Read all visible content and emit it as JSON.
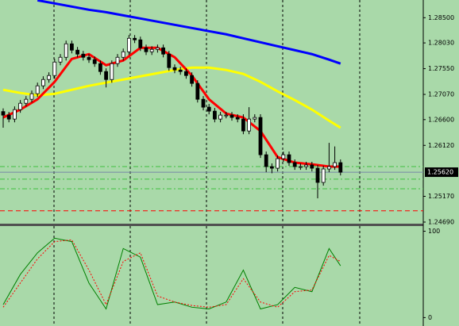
{
  "chart_data": [
    {
      "type": "candlestick",
      "open": [
        1.2675,
        1.26684,
        1.2661,
        1.26787,
        1.26905,
        1.26979,
        1.27083,
        1.2723,
        1.27348,
        1.27422,
        1.27673,
        1.27762,
        1.28013,
        1.27895,
        1.27821,
        1.27762,
        1.27718,
        1.27644,
        1.27496,
        1.27348,
        1.27644,
        1.27762,
        1.27865,
        1.28116,
        1.28087,
        1.27939,
        1.27865,
        1.27909,
        1.27939,
        1.27821,
        1.2757,
        1.27526,
        1.27496,
        1.27422,
        1.27275,
        1.26979,
        1.26832,
        1.26758,
        1.2661,
        1.26684,
        1.26684,
        1.2664,
        1.2661,
        1.26388,
        1.2661,
        1.2664,
        1.25945,
        1.25724,
        1.25694,
        1.25872,
        1.25945,
        1.25798,
        1.25724,
        1.25724,
        1.25754,
        1.25694,
        1.25429,
        1.2568,
        1.25724,
        1.25798
      ],
      "high": [
        1.2681,
        1.26744,
        1.26847,
        1.26965,
        1.27039,
        1.27143,
        1.2729,
        1.27408,
        1.27482,
        1.27733,
        1.27822,
        1.28073,
        1.28073,
        1.27955,
        1.27881,
        1.27822,
        1.27778,
        1.27704,
        1.27556,
        1.27704,
        1.27822,
        1.27925,
        1.28176,
        1.28176,
        1.28147,
        1.27999,
        1.27969,
        1.27999,
        1.27999,
        1.27881,
        1.2763,
        1.27586,
        1.27556,
        1.27482,
        1.27335,
        1.27039,
        1.26892,
        1.26818,
        1.26744,
        1.26744,
        1.26744,
        1.267,
        1.267,
        1.26832,
        1.267,
        1.267,
        1.26005,
        1.25784,
        1.25932,
        1.26005,
        1.26005,
        1.25858,
        1.25784,
        1.25814,
        1.25814,
        1.25754,
        1.2574,
        1.26167,
        1.261,
        1.25858
      ],
      "low": [
        1.2645,
        1.2655,
        1.2655,
        1.26727,
        1.26845,
        1.26919,
        1.27023,
        1.2717,
        1.27288,
        1.27362,
        1.27613,
        1.27702,
        1.27835,
        1.27761,
        1.27702,
        1.27658,
        1.27584,
        1.27436,
        1.272,
        1.27288,
        1.27584,
        1.27702,
        1.27805,
        1.28027,
        1.27879,
        1.27805,
        1.27805,
        1.27849,
        1.27761,
        1.2751,
        1.27466,
        1.27436,
        1.27362,
        1.27215,
        1.26919,
        1.26772,
        1.26698,
        1.2655,
        1.2655,
        1.26624,
        1.2658,
        1.2655,
        1.26328,
        1.26328,
        1.2655,
        1.25885,
        1.2562,
        1.256,
        1.25634,
        1.25812,
        1.25738,
        1.25664,
        1.25664,
        1.25664,
        1.25634,
        1.25133,
        1.25369,
        1.2562,
        1.25664,
        1.2556
      ],
      "close": [
        1.26684,
        1.2661,
        1.26787,
        1.26905,
        1.26979,
        1.27083,
        1.2723,
        1.27348,
        1.27422,
        1.27673,
        1.27762,
        1.28013,
        1.27895,
        1.27821,
        1.27762,
        1.27718,
        1.27644,
        1.27496,
        1.27348,
        1.27644,
        1.27762,
        1.27865,
        1.28116,
        1.28087,
        1.27939,
        1.27865,
        1.27909,
        1.27939,
        1.27821,
        1.2757,
        1.27526,
        1.27496,
        1.27422,
        1.27275,
        1.26979,
        1.26832,
        1.26758,
        1.2661,
        1.26684,
        1.26684,
        1.2664,
        1.2661,
        1.26388,
        1.2661,
        1.2664,
        1.25945,
        1.25724,
        1.25694,
        1.25872,
        1.25945,
        1.25798,
        1.25724,
        1.25724,
        1.25754,
        1.25694,
        1.25429,
        1.2568,
        1.25724,
        1.25798,
        1.2562
      ],
      "up_color": "#ffffff",
      "down_color": "#000000",
      "series": [
        {
          "color": "#0000ff",
          "x": [
            6,
            9,
            12,
            15,
            18,
            21,
            24,
            27,
            30,
            33,
            36,
            39,
            42,
            45,
            48,
            51,
            54,
            57,
            59
          ],
          "values": [
            1.28825,
            1.28766,
            1.28707,
            1.28648,
            1.28603,
            1.28544,
            1.28485,
            1.28426,
            1.28367,
            1.28308,
            1.28249,
            1.2819,
            1.28116,
            1.28042,
            1.27968,
            1.27895,
            1.27821,
            1.27718,
            1.27644
          ]
        },
        {
          "color": "#ffff00",
          "x": [
            0,
            3,
            6,
            9,
            12,
            15,
            18,
            21,
            24,
            27,
            30,
            33,
            36,
            39,
            42,
            45,
            48,
            51,
            54,
            57,
            59
          ],
          "values": [
            1.27156,
            1.27097,
            1.27053,
            1.27082,
            1.27156,
            1.2723,
            1.27289,
            1.27348,
            1.27407,
            1.27466,
            1.27526,
            1.2757,
            1.2757,
            1.27526,
            1.27452,
            1.27304,
            1.27127,
            1.26964,
            1.26787,
            1.2658,
            1.26448
          ]
        },
        {
          "color": "#ff0000",
          "x": [
            0,
            3,
            6,
            9,
            12,
            15,
            18,
            21,
            24,
            27,
            30,
            33,
            36,
            39,
            42,
            45,
            48,
            51,
            54,
            57,
            59
          ],
          "values": [
            1.2664,
            1.26787,
            1.26979,
            1.27304,
            1.27732,
            1.27821,
            1.27614,
            1.27703,
            1.27939,
            1.27939,
            1.27762,
            1.27422,
            1.26979,
            1.26713,
            1.2664,
            1.26388,
            1.25901,
            1.25798,
            1.25768,
            1.25724,
            1.25724
          ]
        }
      ],
      "levels": [
        {
          "value": 1.25724,
          "color": "#40c040",
          "style": "dashdot"
        },
        {
          "value": 1.2549,
          "color": "#40c040",
          "style": "dashdot"
        },
        {
          "value": 1.2531,
          "color": "#40c040",
          "style": "dashdot"
        },
        {
          "value": 1.249,
          "color": "#ff0000",
          "style": "dashed"
        }
      ],
      "current_price": {
        "value": 1.2562,
        "label": "1.25620",
        "color": "#7888a8"
      },
      "ylim": [
        1.2466,
        1.2883
      ],
      "yticks": [
        {
          "value": 1.285,
          "label": "1.28500"
        },
        {
          "value": 1.2803,
          "label": "1.28030"
        },
        {
          "value": 1.2755,
          "label": "1.27550"
        },
        {
          "value": 1.2707,
          "label": "1.27070"
        },
        {
          "value": 1.266,
          "label": "1.26600"
        },
        {
          "value": 1.2612,
          "label": "1.26120"
        },
        {
          "value": 1.2517,
          "label": "1.25170"
        },
        {
          "value": 1.2469,
          "label": "1.24690"
        }
      ]
    },
    {
      "type": "line",
      "series": [
        {
          "color": "#008000",
          "style": "solid",
          "x": [
            0,
            3,
            6,
            9,
            12,
            15,
            18,
            21,
            24,
            27,
            30,
            33,
            36,
            39,
            42,
            45,
            48,
            51,
            54,
            57,
            59
          ],
          "values": [
            15,
            50,
            75,
            92,
            88,
            40,
            10,
            80,
            70,
            15,
            18,
            12,
            10,
            18,
            55,
            10,
            15,
            35,
            30,
            80,
            60
          ]
        },
        {
          "color": "#ff0000",
          "style": "dotted",
          "x": [
            0,
            3,
            6,
            9,
            12,
            15,
            18,
            21,
            24,
            27,
            30,
            33,
            36,
            39,
            42,
            45,
            48,
            51,
            54,
            57,
            59
          ],
          "values": [
            12,
            40,
            68,
            88,
            90,
            55,
            15,
            65,
            75,
            25,
            18,
            14,
            12,
            15,
            45,
            18,
            12,
            30,
            32,
            72,
            65
          ]
        }
      ],
      "ylim": [
        -7,
        106
      ],
      "yticks": [
        100,
        0
      ]
    }
  ]
}
